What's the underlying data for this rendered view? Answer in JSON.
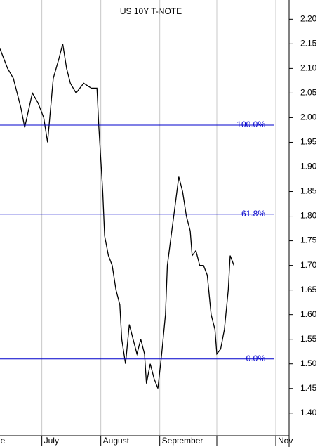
{
  "chart_data": {
    "type": "line",
    "title": "US 10Y T-NOTE",
    "series": [
      {
        "name": "US 10Y T-NOTE",
        "color": "#000000",
        "x": [
          160,
          164,
          167,
          171,
          173,
          177,
          180,
          183,
          185,
          188,
          191,
          193,
          195,
          197,
          200,
          204,
          208,
          211,
          212,
          214,
          215,
          217,
          219,
          221,
          223,
          224,
          226,
          228,
          230,
          232,
          234,
          236,
          237,
          239,
          241,
          243,
          245,
          247,
          248,
          250,
          252,
          254,
          256,
          258,
          260,
          261,
          263,
          265,
          267,
          269,
          271,
          273,
          274,
          276,
          278,
          280,
          281,
          283
        ],
        "values": [
          2.14,
          2.1,
          2.08,
          2.02,
          1.98,
          2.05,
          2.03,
          2.0,
          1.95,
          2.08,
          2.12,
          2.15,
          2.1,
          2.07,
          2.05,
          2.07,
          2.06,
          2.06,
          1.98,
          1.85,
          1.76,
          1.72,
          1.7,
          1.65,
          1.62,
          1.55,
          1.5,
          1.58,
          1.55,
          1.52,
          1.55,
          1.52,
          1.46,
          1.5,
          1.47,
          1.45,
          1.52,
          1.6,
          1.7,
          1.76,
          1.82,
          1.88,
          1.85,
          1.8,
          1.77,
          1.72,
          1.73,
          1.7,
          1.7,
          1.68,
          1.6,
          1.57,
          1.52,
          1.53,
          1.57,
          1.65,
          1.72,
          1.7
        ]
      }
    ],
    "fib_levels": [
      {
        "value": 1.985,
        "label": "100.0%"
      },
      {
        "value": 1.804,
        "label": "61.8%"
      },
      {
        "value": 1.51,
        "label": "0.0%"
      }
    ],
    "fib_color": "#0000cc",
    "xlim": [
      160,
      312
    ],
    "xticks": [
      {
        "value": 152,
        "label": "June"
      },
      {
        "value": 182,
        "label": "July"
      },
      {
        "value": 213,
        "label": "August"
      },
      {
        "value": 244,
        "label": "September"
      },
      {
        "value": 305,
        "label": "Nov"
      }
    ],
    "xgrid_extra": [
      274
    ],
    "ylim": [
      1.354,
      2.239
    ],
    "yticks": [
      {
        "value": 1.4,
        "label": "1.40"
      },
      {
        "value": 1.45,
        "label": "1.45"
      },
      {
        "value": 1.5,
        "label": "1.50"
      },
      {
        "value": 1.55,
        "label": "1.55"
      },
      {
        "value": 1.6,
        "label": "1.60"
      },
      {
        "value": 1.65,
        "label": "1.65"
      },
      {
        "value": 1.7,
        "label": "1.70"
      },
      {
        "value": 1.75,
        "label": "1.75"
      },
      {
        "value": 1.8,
        "label": "1.80"
      },
      {
        "value": 1.85,
        "label": "1.85"
      },
      {
        "value": 1.9,
        "label": "1.90"
      },
      {
        "value": 1.95,
        "label": "1.95"
      },
      {
        "value": 2.0,
        "label": "2.00"
      },
      {
        "value": 2.05,
        "label": "2.05"
      },
      {
        "value": 2.1,
        "label": "2.10"
      },
      {
        "value": 2.15,
        "label": "2.15"
      },
      {
        "value": 2.2,
        "label": "2.20"
      }
    ],
    "grid": true
  }
}
